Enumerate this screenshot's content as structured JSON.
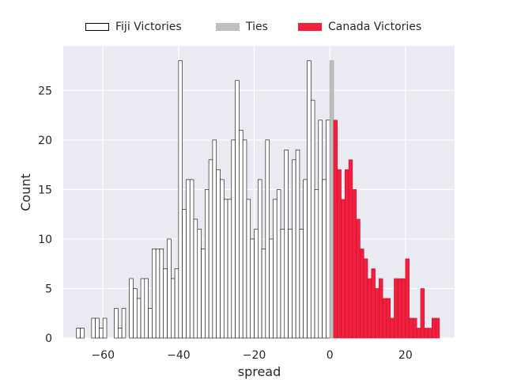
{
  "chart_data": {
    "type": "bar",
    "xlabel": "spread",
    "ylabel": "Count",
    "xlim": [
      -70.5,
      33
    ],
    "ylim": [
      0,
      29.5
    ],
    "xticks": [
      -60,
      -40,
      -20,
      0,
      20
    ],
    "xtick_labels": [
      "−60",
      "−40",
      "−20",
      "0",
      "20"
    ],
    "yticks": [
      0,
      5,
      10,
      15,
      20,
      25
    ],
    "yticks_labels": [
      "0",
      "5",
      "10",
      "15",
      "20",
      "25"
    ],
    "grid": true,
    "legend_position": "top-center",
    "bin_width": 1,
    "series": [
      {
        "name": "Fiji Victories",
        "fill": "#ffffff",
        "stroke": "#000000",
        "bins": [
          [
            -67,
            1
          ],
          [
            -66,
            1
          ],
          [
            -63,
            2
          ],
          [
            -62,
            2
          ],
          [
            -61,
            1
          ],
          [
            -60,
            2
          ],
          [
            -57,
            3
          ],
          [
            -56,
            1
          ],
          [
            -55,
            3
          ],
          [
            -53,
            6
          ],
          [
            -52,
            5
          ],
          [
            -51,
            4
          ],
          [
            -50,
            6
          ],
          [
            -49,
            6
          ],
          [
            -48,
            3
          ],
          [
            -47,
            9
          ],
          [
            -46,
            9
          ],
          [
            -45,
            9
          ],
          [
            -44,
            7
          ],
          [
            -43,
            10
          ],
          [
            -42,
            6
          ],
          [
            -41,
            7
          ],
          [
            -40,
            28
          ],
          [
            -39,
            13
          ],
          [
            -38,
            16
          ],
          [
            -37,
            16
          ],
          [
            -36,
            12
          ],
          [
            -35,
            11
          ],
          [
            -34,
            9
          ],
          [
            -33,
            15
          ],
          [
            -32,
            18
          ],
          [
            -31,
            20
          ],
          [
            -30,
            17
          ],
          [
            -29,
            16
          ],
          [
            -28,
            14
          ],
          [
            -27,
            14
          ],
          [
            -26,
            20
          ],
          [
            -25,
            26
          ],
          [
            -24,
            21
          ],
          [
            -23,
            20
          ],
          [
            -22,
            14
          ],
          [
            -21,
            10
          ],
          [
            -20,
            11
          ],
          [
            -19,
            16
          ],
          [
            -18,
            9
          ],
          [
            -17,
            20
          ],
          [
            -16,
            10
          ],
          [
            -15,
            14
          ],
          [
            -14,
            15
          ],
          [
            -13,
            11
          ],
          [
            -12,
            19
          ],
          [
            -11,
            11
          ],
          [
            -10,
            18
          ],
          [
            -9,
            19
          ],
          [
            -8,
            11
          ],
          [
            -7,
            16
          ],
          [
            -6,
            28
          ],
          [
            -5,
            24
          ],
          [
            -4,
            15
          ],
          [
            -3,
            22
          ],
          [
            -2,
            16
          ],
          [
            -1,
            22
          ]
        ]
      },
      {
        "name": "Ties",
        "fill": "#bfbfbf",
        "stroke": "#9a9a9a",
        "bins": [
          [
            0,
            28
          ]
        ]
      },
      {
        "name": "Canada Victories",
        "fill": "#f0203e",
        "stroke": "#c8102e",
        "bins": [
          [
            1,
            22
          ],
          [
            2,
            17
          ],
          [
            3,
            14
          ],
          [
            4,
            17
          ],
          [
            5,
            18
          ],
          [
            6,
            15
          ],
          [
            7,
            12
          ],
          [
            8,
            9
          ],
          [
            9,
            8
          ],
          [
            10,
            6
          ],
          [
            11,
            7
          ],
          [
            12,
            5
          ],
          [
            13,
            6
          ],
          [
            14,
            4
          ],
          [
            15,
            4
          ],
          [
            16,
            2
          ],
          [
            17,
            6
          ],
          [
            18,
            6
          ],
          [
            19,
            6
          ],
          [
            20,
            8
          ],
          [
            21,
            2
          ],
          [
            22,
            2
          ],
          [
            23,
            1
          ],
          [
            24,
            5
          ],
          [
            25,
            1
          ],
          [
            26,
            1
          ],
          [
            27,
            2
          ],
          [
            28,
            2
          ]
        ]
      }
    ]
  },
  "colors": {
    "plot_background": "#eaeaf2",
    "grid": "#ffffff",
    "text": "#262626"
  }
}
